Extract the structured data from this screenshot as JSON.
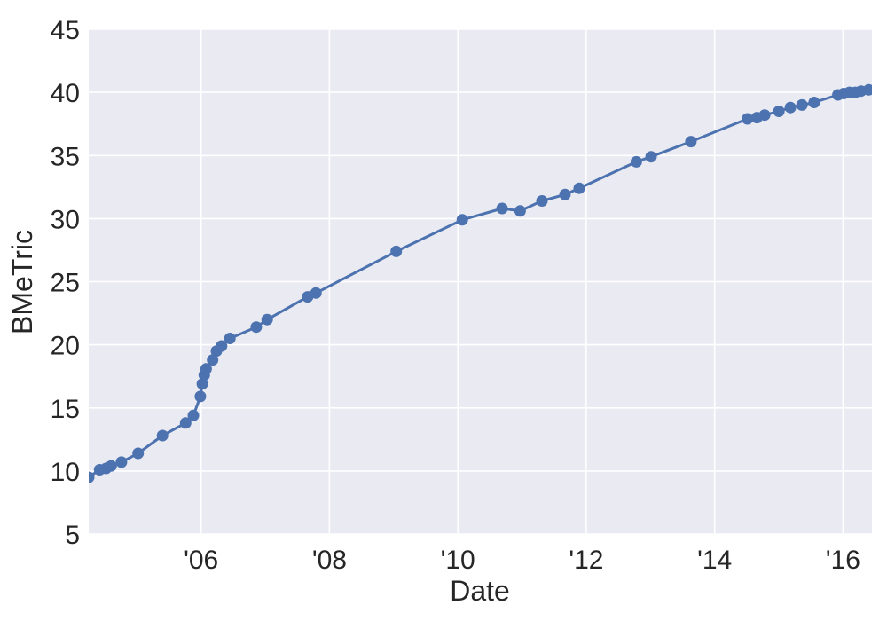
{
  "figure": {
    "background": "#ffffff"
  },
  "chart_data": {
    "type": "line",
    "title": "",
    "xlabel": "Date",
    "ylabel": "BMeTric",
    "xlim": [
      2004.25,
      2016.45
    ],
    "ylim": [
      5,
      45
    ],
    "grid": true,
    "legend_position": "none",
    "axes_background": "#eaeaf2",
    "grid_color": "#ffffff",
    "text_color": "#262626",
    "line_color": "#4c72b0",
    "marker": "circle",
    "xticks": [
      {
        "value": 2006,
        "label": "'06"
      },
      {
        "value": 2008,
        "label": "'08"
      },
      {
        "value": 2010,
        "label": "'10"
      },
      {
        "value": 2012,
        "label": "'12"
      },
      {
        "value": 2014,
        "label": "'14"
      },
      {
        "value": 2016,
        "label": "'16"
      }
    ],
    "yticks": [
      {
        "value": 5,
        "label": "5"
      },
      {
        "value": 10,
        "label": "10"
      },
      {
        "value": 15,
        "label": "15"
      },
      {
        "value": 20,
        "label": "20"
      },
      {
        "value": 25,
        "label": "25"
      },
      {
        "value": 30,
        "label": "30"
      },
      {
        "value": 35,
        "label": "35"
      },
      {
        "value": 40,
        "label": "40"
      },
      {
        "value": 45,
        "label": "45"
      }
    ],
    "series": [
      {
        "name": "BMeTric",
        "color": "#4c72b0",
        "marker": "circle",
        "line_style": "solid",
        "points": [
          [
            2004.25,
            9.5
          ],
          [
            2004.42,
            10.1
          ],
          [
            2004.52,
            10.2
          ],
          [
            2004.6,
            10.4
          ],
          [
            2004.76,
            10.7
          ],
          [
            2005.02,
            11.4
          ],
          [
            2005.4,
            12.8
          ],
          [
            2005.76,
            13.8
          ],
          [
            2005.88,
            14.4
          ],
          [
            2005.99,
            15.9
          ],
          [
            2006.02,
            16.9
          ],
          [
            2006.05,
            17.6
          ],
          [
            2006.08,
            18.1
          ],
          [
            2006.18,
            18.8
          ],
          [
            2006.24,
            19.5
          ],
          [
            2006.32,
            19.9
          ],
          [
            2006.45,
            20.5
          ],
          [
            2006.86,
            21.4
          ],
          [
            2007.03,
            22.0
          ],
          [
            2007.66,
            23.8
          ],
          [
            2007.79,
            24.1
          ],
          [
            2009.04,
            27.4
          ],
          [
            2010.07,
            29.9
          ],
          [
            2010.69,
            30.8
          ],
          [
            2010.97,
            30.6
          ],
          [
            2011.31,
            31.4
          ],
          [
            2011.67,
            31.9
          ],
          [
            2011.89,
            32.4
          ],
          [
            2012.78,
            34.5
          ],
          [
            2013.01,
            34.9
          ],
          [
            2013.63,
            36.1
          ],
          [
            2014.51,
            37.9
          ],
          [
            2014.66,
            38.0
          ],
          [
            2014.78,
            38.2
          ],
          [
            2015.0,
            38.5
          ],
          [
            2015.18,
            38.8
          ],
          [
            2015.36,
            39.0
          ],
          [
            2015.55,
            39.2
          ],
          [
            2015.92,
            39.8
          ],
          [
            2016.01,
            39.9
          ],
          [
            2016.1,
            40.0
          ],
          [
            2016.19,
            40.0
          ],
          [
            2016.28,
            40.1
          ],
          [
            2016.4,
            40.2
          ]
        ]
      }
    ]
  }
}
